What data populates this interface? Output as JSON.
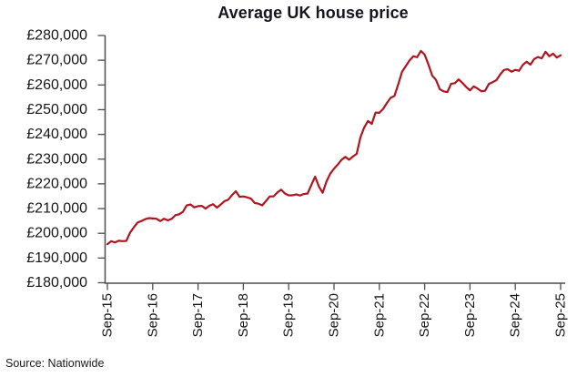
{
  "chart_data": {
    "type": "line",
    "title": "Average UK house price",
    "source_label": "Source: Nationwide",
    "series": [
      {
        "name": "Average UK house price",
        "start_month": "Sep-2015",
        "end_month": "Sep-2025",
        "frequency": "monthly",
        "values": [
          195585,
          196807,
          196305,
          196999,
          196829,
          196930,
          200251,
          202436,
          204368,
          204968,
          205715,
          206145,
          206015,
          205904,
          204947,
          205898,
          205240,
          205846,
          207308,
          207699,
          208711,
          211301,
          211671,
          210495,
          210982,
          211085,
          209988,
          211156,
          211756,
          210402,
          211625,
          213000,
          213618,
          215444,
          217010,
          214745,
          214922,
          214534,
          214044,
          212281,
          211966,
          211304,
          213102,
          214920,
          214946,
          216515,
          217663,
          216096,
          215352,
          215368,
          215734,
          215282,
          215897,
          216092,
          219583,
          222915,
          218902,
          216403,
          220936,
          224123,
          226129,
          227826,
          229721,
          230920,
          229748,
          231061,
          232134,
          238831,
          242832,
          245432,
          244229,
          248857,
          248742,
          250311,
          252687,
          254822,
          255556,
          260230,
          265312,
          267620,
          269914,
          271613,
          271209,
          273751,
          272259,
          268282,
          263788,
          262068,
          258297,
          257406,
          257122,
          260441,
          260736,
          262239,
          260828,
          259153,
          257808,
          259423,
          258557,
          257443,
          257656,
          260420,
          261142,
          261962,
          264249,
          266064,
          266334,
          265375,
          266094,
          265738,
          268144,
          269426,
          268213,
          270493,
          271316,
          270752,
          273427,
          271619,
          272664,
          271079,
          271995
        ]
      }
    ],
    "ylim": [
      180000,
      280000
    ],
    "y_tick_labels": [
      "£280,000",
      "£270,000",
      "£260,000",
      "£250,000",
      "£240,000",
      "£230,000",
      "£220,000",
      "£210,000",
      "£200,000",
      "£190,000",
      "£180,000"
    ],
    "y_tick_values": [
      280000,
      270000,
      260000,
      250000,
      240000,
      230000,
      220000,
      210000,
      200000,
      190000,
      180000
    ],
    "x_tick_labels": [
      "Sep-15",
      "Sep-16",
      "Sep-17",
      "Sep-18",
      "Sep-19",
      "Sep-20",
      "Sep-21",
      "Sep-22",
      "Sep-23",
      "Sep-24",
      "Sep-25"
    ],
    "grid": false,
    "legend": "none",
    "line_color": "#b0151f",
    "axis_color": "#4d4d4d",
    "text_color": "#161616"
  }
}
